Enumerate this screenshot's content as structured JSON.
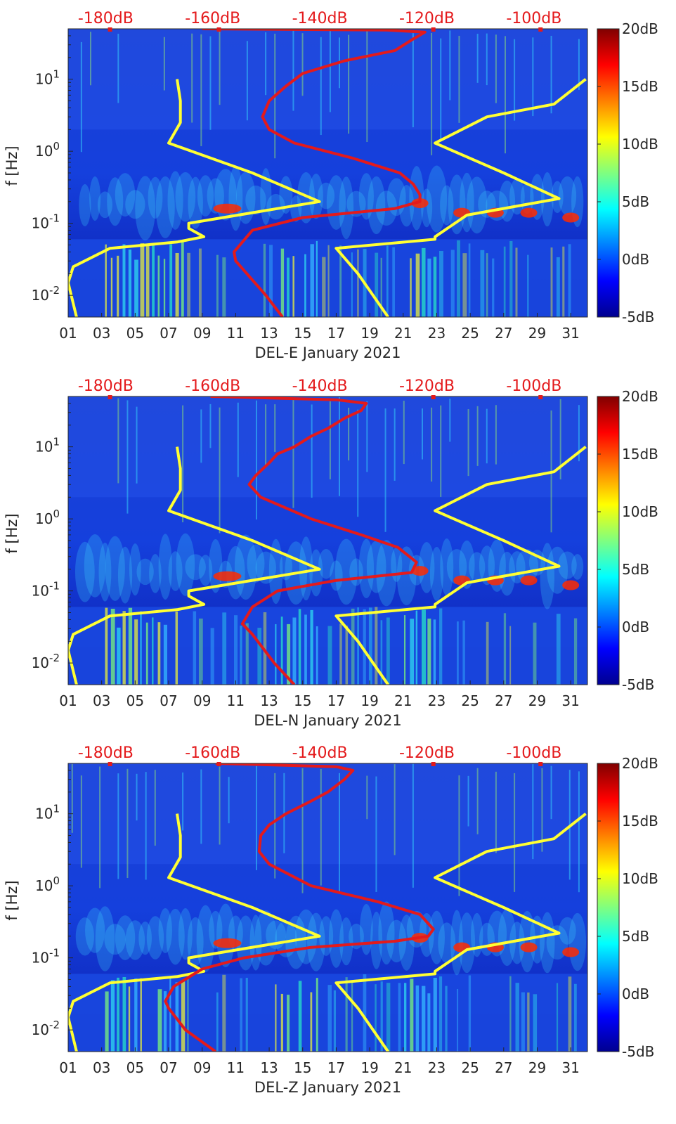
{
  "chart_data": [
    {
      "type": "heatmap",
      "station": "DEL-E",
      "xlabel": "DEL-E January 2021",
      "ylabel": "f [Hz]",
      "x_ticks": [
        "01",
        "03",
        "05",
        "07",
        "09",
        "11",
        "13",
        "15",
        "17",
        "19",
        "21",
        "23",
        "25",
        "27",
        "29",
        "31"
      ],
      "x_range_days": [
        1,
        32
      ],
      "y_ticks": [
        {
          "v": 0.01,
          "base": "10",
          "exp": "-2"
        },
        {
          "v": 0.1,
          "base": "10",
          "exp": "-1"
        },
        {
          "v": 1,
          "base": "10",
          "exp": "0"
        },
        {
          "v": 10,
          "base": "10",
          "exp": "1"
        }
      ],
      "y_range_hz": [
        0.005,
        50
      ],
      "top_axis_labels": [
        "-180dB",
        "-160dB",
        "-140dB",
        "-120dB",
        "-100dB"
      ],
      "top_axis_range_db": [
        -187,
        -90
      ],
      "colorbar_labels": [
        "20dB",
        "15dB",
        "10dB",
        "5dB",
        "0dB",
        "-5dB"
      ],
      "colorbar_range_db": [
        -5,
        20
      ],
      "yellow_noise_model_curves": [
        [
          [
            0.005,
            1.5
          ],
          [
            0.015,
            1.0
          ],
          [
            0.025,
            1.3
          ],
          [
            0.045,
            3.5
          ],
          [
            0.055,
            7.5
          ],
          [
            0.065,
            9.1
          ],
          [
            0.085,
            8.2
          ],
          [
            0.1,
            8.2
          ],
          [
            0.2,
            16.0
          ],
          [
            0.5,
            12.0
          ],
          [
            1.3,
            7.0
          ],
          [
            2.5,
            7.7
          ],
          [
            5,
            7.7
          ],
          [
            10,
            7.5
          ]
        ],
        [
          [
            0.005,
            20.1
          ],
          [
            0.02,
            18.3
          ],
          [
            0.045,
            17.0
          ],
          [
            0.06,
            22.9
          ],
          [
            0.065,
            22.9
          ],
          [
            0.13,
            24.8
          ],
          [
            0.22,
            30.3
          ],
          [
            0.5,
            27.0
          ],
          [
            1.3,
            22.9
          ],
          [
            3.0,
            26.0
          ],
          [
            4.5,
            30.0
          ],
          [
            10,
            31.9
          ]
        ]
      ],
      "red_psd_curve": [
        [
          0.005,
          13.8
        ],
        [
          0.01,
          12.8
        ],
        [
          0.03,
          11.0
        ],
        [
          0.04,
          10.9
        ],
        [
          0.08,
          12.0
        ],
        [
          0.12,
          15.0
        ],
        [
          0.16,
          20.5
        ],
        [
          0.2,
          22.0
        ],
        [
          0.25,
          22.0
        ],
        [
          0.35,
          21.6
        ],
        [
          0.5,
          20.8
        ],
        [
          0.8,
          18.0
        ],
        [
          1.3,
          14.5
        ],
        [
          2.0,
          13.0
        ],
        [
          3.0,
          12.6
        ],
        [
          5.0,
          13.0
        ],
        [
          8.0,
          14.0
        ],
        [
          12,
          15.0
        ],
        [
          18,
          17.5
        ],
        [
          25,
          20.5
        ],
        [
          35,
          21.5
        ],
        [
          45,
          22.3
        ],
        [
          48,
          20.0
        ],
        [
          50,
          9.0
        ]
      ],
      "red_top_markers": [
        3.5,
        10,
        22.8,
        29.2
      ]
    },
    {
      "type": "heatmap",
      "station": "DEL-N",
      "xlabel": "DEL-N January 2021",
      "ylabel": "f [Hz]",
      "x_ticks": [
        "01",
        "03",
        "05",
        "07",
        "09",
        "11",
        "13",
        "15",
        "17",
        "19",
        "21",
        "23",
        "25",
        "27",
        "29",
        "31"
      ],
      "x_range_days": [
        1,
        32
      ],
      "y_ticks": [
        {
          "v": 0.01,
          "base": "10",
          "exp": "-2"
        },
        {
          "v": 0.1,
          "base": "10",
          "exp": "-1"
        },
        {
          "v": 1,
          "base": "10",
          "exp": "0"
        },
        {
          "v": 10,
          "base": "10",
          "exp": "1"
        }
      ],
      "y_range_hz": [
        0.005,
        50
      ],
      "top_axis_labels": [
        "-180dB",
        "-160dB",
        "-140dB",
        "-120dB",
        "-100dB"
      ],
      "top_axis_range_db": [
        -187,
        -90
      ],
      "colorbar_labels": [
        "20dB",
        "15dB",
        "10dB",
        "5dB",
        "0dB",
        "-5dB"
      ],
      "colorbar_range_db": [
        -5,
        20
      ],
      "yellow_noise_model_curves": [
        [
          [
            0.005,
            1.5
          ],
          [
            0.015,
            1.0
          ],
          [
            0.025,
            1.3
          ],
          [
            0.045,
            3.5
          ],
          [
            0.055,
            7.5
          ],
          [
            0.065,
            9.1
          ],
          [
            0.085,
            8.2
          ],
          [
            0.1,
            8.2
          ],
          [
            0.2,
            16.0
          ],
          [
            0.5,
            12.0
          ],
          [
            1.3,
            7.0
          ],
          [
            2.5,
            7.7
          ],
          [
            5,
            7.7
          ],
          [
            10,
            7.5
          ]
        ],
        [
          [
            0.005,
            20.1
          ],
          [
            0.02,
            18.3
          ],
          [
            0.045,
            17.0
          ],
          [
            0.06,
            22.9
          ],
          [
            0.065,
            22.9
          ],
          [
            0.13,
            24.8
          ],
          [
            0.22,
            30.3
          ],
          [
            0.5,
            27.0
          ],
          [
            1.3,
            22.9
          ],
          [
            3.0,
            26.0
          ],
          [
            4.5,
            30.0
          ],
          [
            10,
            31.9
          ]
        ]
      ],
      "red_psd_curve": [
        [
          0.005,
          14.5
        ],
        [
          0.01,
          13.3
        ],
        [
          0.025,
          12.0
        ],
        [
          0.035,
          11.4
        ],
        [
          0.06,
          12.0
        ],
        [
          0.1,
          13.5
        ],
        [
          0.14,
          17.0
        ],
        [
          0.18,
          21.5
        ],
        [
          0.25,
          21.8
        ],
        [
          0.4,
          20.7
        ],
        [
          0.6,
          18.5
        ],
        [
          1.0,
          15.5
        ],
        [
          2.0,
          12.5
        ],
        [
          3.0,
          11.8
        ],
        [
          4.0,
          12.2
        ],
        [
          6.0,
          13.0
        ],
        [
          8.0,
          13.5
        ],
        [
          10,
          14.5
        ],
        [
          14,
          15.5
        ],
        [
          18,
          16.5
        ],
        [
          25,
          17.5
        ],
        [
          32,
          18.5
        ],
        [
          40,
          18.8
        ],
        [
          45,
          17.0
        ],
        [
          50,
          9.5
        ]
      ],
      "red_top_markers": [
        3.5,
        22.8,
        29.2
      ]
    },
    {
      "type": "heatmap",
      "station": "DEL-Z",
      "xlabel": "DEL-Z January 2021",
      "ylabel": "f [Hz]",
      "x_ticks": [
        "01",
        "03",
        "05",
        "07",
        "09",
        "11",
        "13",
        "15",
        "17",
        "19",
        "21",
        "23",
        "25",
        "27",
        "29",
        "31"
      ],
      "x_range_days": [
        1,
        32
      ],
      "y_ticks": [
        {
          "v": 0.01,
          "base": "10",
          "exp": "-2"
        },
        {
          "v": 0.1,
          "base": "10",
          "exp": "-1"
        },
        {
          "v": 1,
          "base": "10",
          "exp": "0"
        },
        {
          "v": 10,
          "base": "10",
          "exp": "1"
        }
      ],
      "y_range_hz": [
        0.005,
        50
      ],
      "top_axis_labels": [
        "-180dB",
        "-160dB",
        "-140dB",
        "-120dB",
        "-100dB"
      ],
      "top_axis_range_db": [
        -187,
        -90
      ],
      "colorbar_labels": [
        "20dB",
        "15dB",
        "10dB",
        "5dB",
        "0dB",
        "-5dB"
      ],
      "colorbar_range_db": [
        -5,
        20
      ],
      "yellow_noise_model_curves": [
        [
          [
            0.005,
            1.5
          ],
          [
            0.015,
            1.0
          ],
          [
            0.025,
            1.3
          ],
          [
            0.045,
            3.5
          ],
          [
            0.055,
            7.5
          ],
          [
            0.065,
            9.1
          ],
          [
            0.085,
            8.2
          ],
          [
            0.1,
            8.2
          ],
          [
            0.2,
            16.0
          ],
          [
            0.5,
            12.0
          ],
          [
            1.3,
            7.0
          ],
          [
            2.5,
            7.7
          ],
          [
            5,
            7.7
          ],
          [
            10,
            7.5
          ]
        ],
        [
          [
            0.005,
            20.1
          ],
          [
            0.02,
            18.3
          ],
          [
            0.045,
            17.0
          ],
          [
            0.06,
            22.9
          ],
          [
            0.065,
            22.9
          ],
          [
            0.13,
            24.8
          ],
          [
            0.22,
            30.3
          ],
          [
            0.5,
            27.0
          ],
          [
            1.3,
            22.9
          ],
          [
            3.0,
            26.0
          ],
          [
            4.5,
            30.0
          ],
          [
            10,
            31.9
          ]
        ]
      ],
      "red_psd_curve": [
        [
          0.005,
          9.8
        ],
        [
          0.01,
          8.0
        ],
        [
          0.02,
          7.0
        ],
        [
          0.025,
          6.8
        ],
        [
          0.04,
          7.3
        ],
        [
          0.07,
          9.0
        ],
        [
          0.1,
          11.5
        ],
        [
          0.14,
          15.5
        ],
        [
          0.17,
          20.5
        ],
        [
          0.2,
          22.5
        ],
        [
          0.25,
          22.8
        ],
        [
          0.4,
          22.0
        ],
        [
          0.6,
          19.5
        ],
        [
          1.0,
          15.5
        ],
        [
          2.0,
          13.0
        ],
        [
          3.0,
          12.4
        ],
        [
          5.0,
          12.5
        ],
        [
          7.0,
          13.0
        ],
        [
          10,
          14.0
        ],
        [
          15,
          15.5
        ],
        [
          20,
          16.5
        ],
        [
          30,
          17.5
        ],
        [
          40,
          18.0
        ],
        [
          45,
          17.0
        ],
        [
          50,
          9.8
        ]
      ],
      "red_top_markers": [
        3.5,
        10,
        22.8,
        29.2
      ]
    }
  ]
}
